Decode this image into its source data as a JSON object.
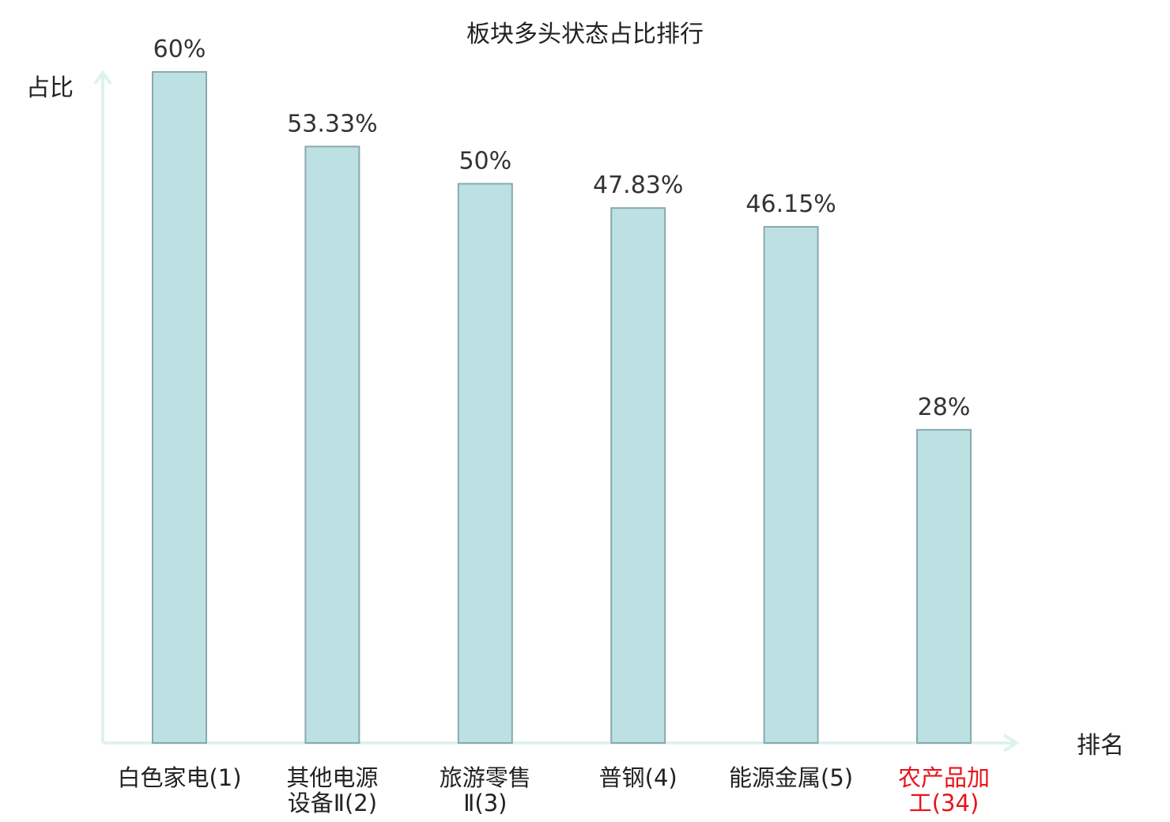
{
  "chart_data": {
    "type": "bar",
    "title": "板块多头状态占比排行",
    "ylabel": "占比",
    "xlabel": "排名",
    "ylim": [
      0,
      60
    ],
    "grid": false,
    "categories": [
      {
        "lines": [
          "白色家电(1)"
        ]
      },
      {
        "lines": [
          "其他电源",
          "设备Ⅱ(2)"
        ]
      },
      {
        "lines": [
          "旅游零售",
          "Ⅱ(3)"
        ]
      },
      {
        "lines": [
          "普钢(4)"
        ]
      },
      {
        "lines": [
          "能源金属(5)"
        ]
      },
      {
        "lines": [
          "农产品加",
          "工(34)"
        ],
        "highlight": true
      }
    ],
    "values": [
      60,
      53.33,
      50,
      47.83,
      46.15,
      28
    ],
    "value_labels": [
      "60%",
      "53.33%",
      "50%",
      "47.83%",
      "46.15%",
      "28%"
    ],
    "colors": {
      "bar_fill": "#bde0e3",
      "bar_stroke": "#8aa9ad",
      "axis": "#dff2f0",
      "text": "#222222",
      "highlight": "#e8141b"
    }
  }
}
